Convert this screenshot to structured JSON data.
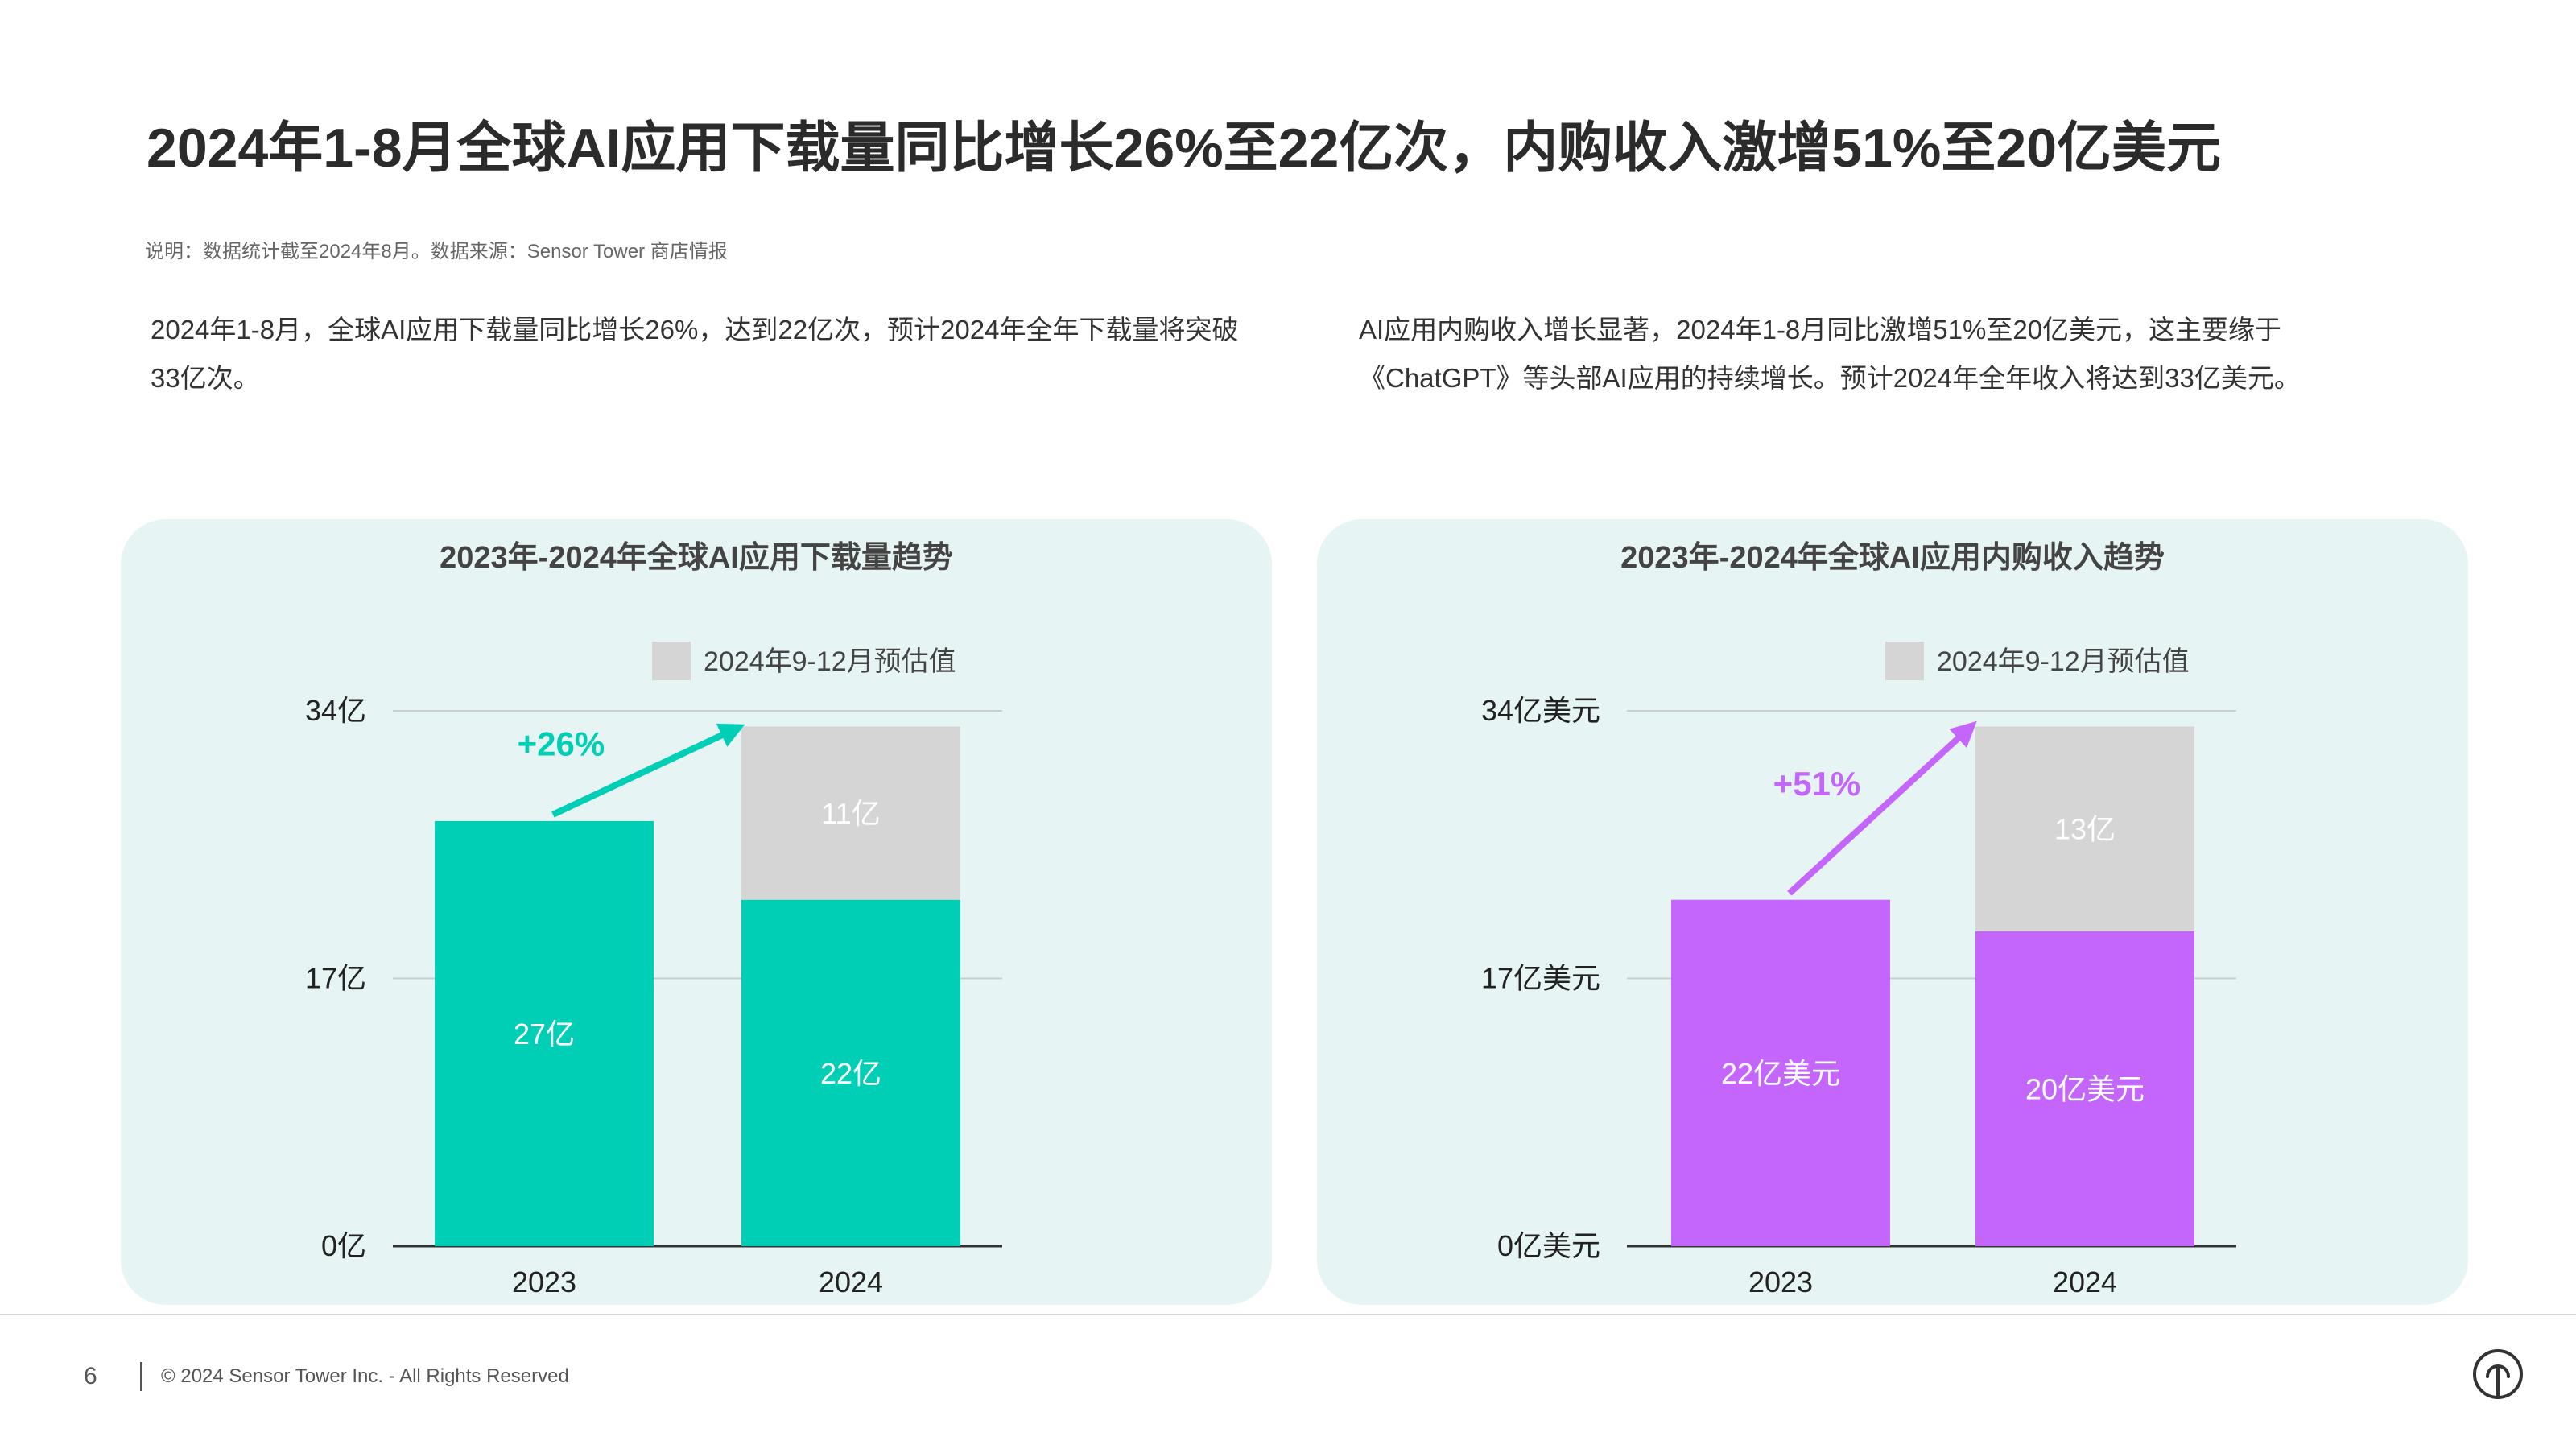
{
  "title": "2024年1-8月全球AI应用下载量同比增长26%至22亿次，内购收入激增51%至20亿美元",
  "note": "说明：数据统计截至2024年8月。数据来源：Sensor Tower 商店情报",
  "desc_left": "2024年1-8月，全球AI应用下载量同比增长26%，达到22亿次，预计2024年全年下载量将突破33亿次。",
  "desc_right": "AI应用内购收入增长显著，2024年1-8月同比激增51%至20亿美元，这主要缘于《ChatGPT》等头部AI应用的持续增长。预计2024年全年收入将达到33亿美元。",
  "colors": {
    "teal": "#00cfb6",
    "purple": "#c466fb",
    "estimate_gray": "#d5d5d5",
    "panel_bg": "#e6f5f3"
  },
  "chart_data": [
    {
      "type": "bar",
      "stacked": true,
      "title": "2023年-2024年全球AI应用下载量趋势",
      "categories": [
        "2023",
        "2024"
      ],
      "series": [
        {
          "values": [
            27,
            22
          ],
          "labels": [
            "27亿",
            "22亿"
          ],
          "color": "#00cfb6"
        },
        {
          "name": "2024年9-12月预估值",
          "values": [
            0,
            11
          ],
          "labels": [
            "",
            "11亿"
          ],
          "color": "#d5d5d5"
        }
      ],
      "y_ticks": [
        0,
        17,
        34
      ],
      "y_tick_labels": [
        "0亿",
        "17亿",
        "34亿"
      ],
      "ylim": [
        0,
        34
      ],
      "growth_label": "+26%",
      "growth_color": "#00cfb6",
      "legend": "top-right",
      "grid": true
    },
    {
      "type": "bar",
      "stacked": true,
      "title": "2023年-2024年全球AI应用内购收入趋势",
      "categories": [
        "2023",
        "2024"
      ],
      "series": [
        {
          "values": [
            22,
            20
          ],
          "labels": [
            "22亿美元",
            "20亿美元"
          ],
          "color": "#c466fb"
        },
        {
          "name": "2024年9-12月预估值",
          "values": [
            0,
            13
          ],
          "labels": [
            "",
            "13亿"
          ],
          "color": "#d5d5d5"
        }
      ],
      "y_ticks": [
        0,
        17,
        34
      ],
      "y_tick_labels": [
        "0亿美元",
        "17亿美元",
        "34亿美元"
      ],
      "ylim": [
        0,
        34
      ],
      "growth_label": "+51%",
      "growth_color": "#c466fb",
      "legend": "top-right",
      "grid": true
    }
  ],
  "footer": {
    "page": "6",
    "copyright": "© 2024 Sensor Tower Inc. - All Rights Reserved"
  }
}
